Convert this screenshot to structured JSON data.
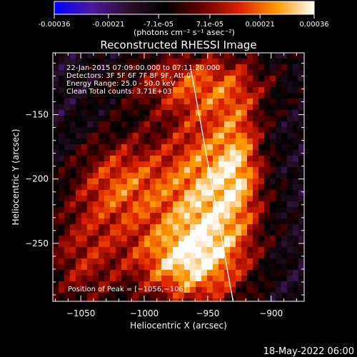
{
  "colorbar": {
    "tick_labels": [
      "-0.00036",
      "-0.00021",
      "-7.1e-05",
      "7.1e-05",
      "0.00021",
      "0.00036"
    ],
    "tick_values": [
      -0.00036,
      -0.00021,
      -7.1e-05,
      7.1e-05,
      0.00021,
      0.00036
    ],
    "range": [
      -0.00036,
      0.00036
    ],
    "unit_label": "(photons cm⁻² s⁻¹ asec⁻²)"
  },
  "chart_data": {
    "type": "heatmap",
    "title": "Reconstructed RHESSI Image",
    "xlabel": "Heliocentric X (arcsec)",
    "ylabel": "Heliocentric Y (arcsec)",
    "xlim": [
      -1072,
      -874
    ],
    "ylim": [
      -295,
      -102
    ],
    "x_ticks": [
      -1050,
      -1000,
      -950,
      -900
    ],
    "x_tick_labels": [
      "−1050",
      "−1000",
      "−950",
      "−900"
    ],
    "y_ticks": [
      -150,
      -200,
      -250
    ],
    "y_tick_labels": [
      "−150",
      "−200",
      "−250"
    ],
    "annotations": [
      "22-Jan-2015 07:09:00.000 to 07:11:20.000",
      "Detectors: 3F 5F 6F 7F 8F 9F, Att 0",
      "Energy Range: 25.0 - 50.0 keV",
      "Clean    Total counts: 3.71E+03"
    ],
    "peak_label": "Position of Peak = [−1056,−106]",
    "peak_position": [
      -1056,
      -106
    ],
    "limb_line": [
      [
        -963,
        -116
      ],
      [
        -930,
        -295
      ]
    ],
    "colormap": [
      "#0000ff",
      "#4a1aa0",
      "#2a1028",
      "#000000",
      "#6a0000",
      "#dd2200",
      "#ff9900",
      "#ffffff"
    ]
  },
  "footer": {
    "timestamp": "18-May-2022 06:00"
  }
}
